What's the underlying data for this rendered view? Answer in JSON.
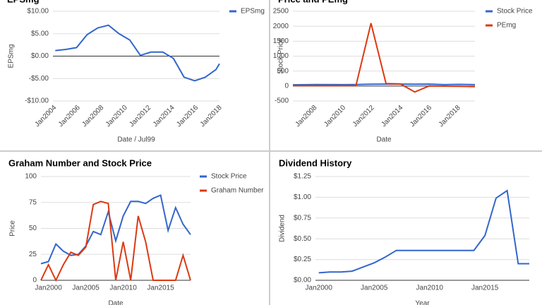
{
  "chart_data": [
    {
      "type": "line",
      "title": "EPSmg",
      "x_label": "Date / Jul99",
      "y_label": "EPSmg",
      "x": [
        2004.0,
        2004.9,
        2005.8,
        2006.7,
        2007.6,
        2008.5,
        2009.4,
        2010.3,
        2011.2,
        2012.1,
        2013.1,
        2014.0,
        2014.9,
        2015.8,
        2016.7,
        2017.6,
        2017.9
      ],
      "series": [
        {
          "name": "EPSmg",
          "color": "#3366cc",
          "values": [
            1.25,
            1.5,
            1.9,
            4.8,
            6.3,
            6.9,
            5.0,
            3.6,
            0.15,
            0.9,
            0.9,
            -0.5,
            -4.7,
            -5.5,
            -4.7,
            -3.0,
            -1.7
          ]
        }
      ],
      "xlim": [
        2003.8,
        2017.9
      ],
      "xticks": [
        {
          "value": 2004,
          "label": "Jan2004"
        },
        {
          "value": 2006,
          "label": "Jan2006"
        },
        {
          "value": 2008,
          "label": "Jan2008"
        },
        {
          "value": 2010,
          "label": "Jan2010"
        },
        {
          "value": 2012,
          "label": "Jan2012"
        },
        {
          "value": 2014,
          "label": "Jan2014"
        },
        {
          "value": 2016,
          "label": "Jan2016"
        },
        {
          "value": 2018,
          "label": "Jan2018"
        }
      ],
      "ylim": [
        -10,
        10
      ],
      "yticks": [
        {
          "value": -10,
          "label": "-$10.00"
        },
        {
          "value": -5,
          "label": "-$5.00"
        },
        {
          "value": 0,
          "label": "$0.00"
        },
        {
          "value": 5,
          "label": "$5.00"
        },
        {
          "value": 10,
          "label": "$10.00"
        }
      ],
      "grid": true,
      "legend": "right"
    },
    {
      "type": "line",
      "title": "Price and PEmg",
      "x_label": "Date",
      "y_label": "Stock Price",
      "x": [
        2006.4,
        2008,
        2010,
        2010.8,
        2011.85,
        2012.9,
        2013.9,
        2014.9,
        2015.9,
        2017,
        2018,
        2019.1
      ],
      "series": [
        {
          "name": "Stock Price",
          "color": "#3366cc",
          "values": [
            40,
            50,
            45,
            50,
            60,
            65,
            65,
            60,
            65,
            45,
            55,
            45
          ]
        },
        {
          "name": "PEmg",
          "color": "#dc3912",
          "values": [
            15,
            10,
            10,
            15,
            2100,
            80,
            70,
            -200,
            0,
            -5,
            -10,
            -20
          ]
        }
      ],
      "xlim": [
        2006.4,
        2019.1
      ],
      "xticks": [
        {
          "value": 2008,
          "label": "Jan2008"
        },
        {
          "value": 2010,
          "label": "Jan2010"
        },
        {
          "value": 2012,
          "label": "Jan2012"
        },
        {
          "value": 2014,
          "label": "Jan2014"
        },
        {
          "value": 2016,
          "label": "Jan2016"
        },
        {
          "value": 2018,
          "label": "Jan2018"
        }
      ],
      "ylim": [
        -500,
        2500
      ],
      "yticks": [
        -500,
        0,
        500,
        1000,
        1500,
        2000,
        2500
      ],
      "grid": true,
      "legend": "right"
    },
    {
      "type": "line",
      "title": "Graham Number and Stock Price",
      "x_label": "Date",
      "y_label": "Price",
      "x": [
        1999,
        2000,
        2001,
        2002,
        2003,
        2004,
        2005,
        2006,
        2007,
        2008,
        2009,
        2010,
        2011,
        2012,
        2013,
        2014,
        2015,
        2016,
        2017,
        2018,
        2019
      ],
      "series": [
        {
          "name": "Stock Price",
          "color": "#3366cc",
          "values": [
            16,
            18,
            35,
            28,
            24,
            25,
            33,
            47,
            44,
            66,
            38,
            62,
            76,
            76,
            74,
            79,
            82,
            48,
            70,
            54,
            44
          ]
        },
        {
          "name": "Graham Number",
          "color": "#dc3912",
          "values": [
            0,
            15,
            0,
            15,
            27,
            24,
            32,
            73,
            76,
            74,
            0,
            37,
            0,
            62,
            37,
            0,
            0,
            0,
            0,
            24,
            0
          ]
        }
      ],
      "xlim": [
        1999,
        2019
      ],
      "xticks": [
        {
          "value": 2000,
          "label": "Jan2000"
        },
        {
          "value": 2005,
          "label": "Jan2005"
        },
        {
          "value": 2010,
          "label": "Jan2010"
        },
        {
          "value": 2015,
          "label": "Jan2015"
        }
      ],
      "ylim": [
        0,
        100
      ],
      "yticks": [
        0,
        25,
        50,
        75,
        100
      ],
      "grid": true,
      "legend": "right"
    },
    {
      "type": "line",
      "title": "Dividend History",
      "x_label": "Year",
      "y_label": "Dividend",
      "x": [
        2000,
        2001,
        2002,
        2003,
        2004,
        2005,
        2006,
        2007,
        2008,
        2009,
        2010,
        2011,
        2012,
        2013,
        2014,
        2015,
        2016,
        2017,
        2018,
        2019
      ],
      "series": [
        {
          "name": "Dividend",
          "color": "#3366cc",
          "values": [
            0.09,
            0.1,
            0.1,
            0.11,
            0.16,
            0.21,
            0.28,
            0.36,
            0.36,
            0.36,
            0.36,
            0.36,
            0.36,
            0.36,
            0.36,
            0.54,
            0.99,
            1.08,
            0.2,
            0.2
          ]
        }
      ],
      "xlim": [
        1999.7,
        2019
      ],
      "xticks": [
        {
          "value": 2000,
          "label": "Jan2000"
        },
        {
          "value": 2005,
          "label": "Jan2005"
        },
        {
          "value": 2010,
          "label": "Jan2010"
        },
        {
          "value": 2015,
          "label": "Jan2015"
        }
      ],
      "ylim": [
        0,
        1.25
      ],
      "yticks": [
        {
          "value": 0,
          "label": "$0.00"
        },
        {
          "value": 0.25,
          "label": "$0.25"
        },
        {
          "value": 0.5,
          "label": "$0.50"
        },
        {
          "value": 0.75,
          "label": "$0.75"
        },
        {
          "value": 1,
          "label": "$1.00"
        },
        {
          "value": 1.25,
          "label": "$1.25"
        }
      ],
      "grid": true
    }
  ]
}
